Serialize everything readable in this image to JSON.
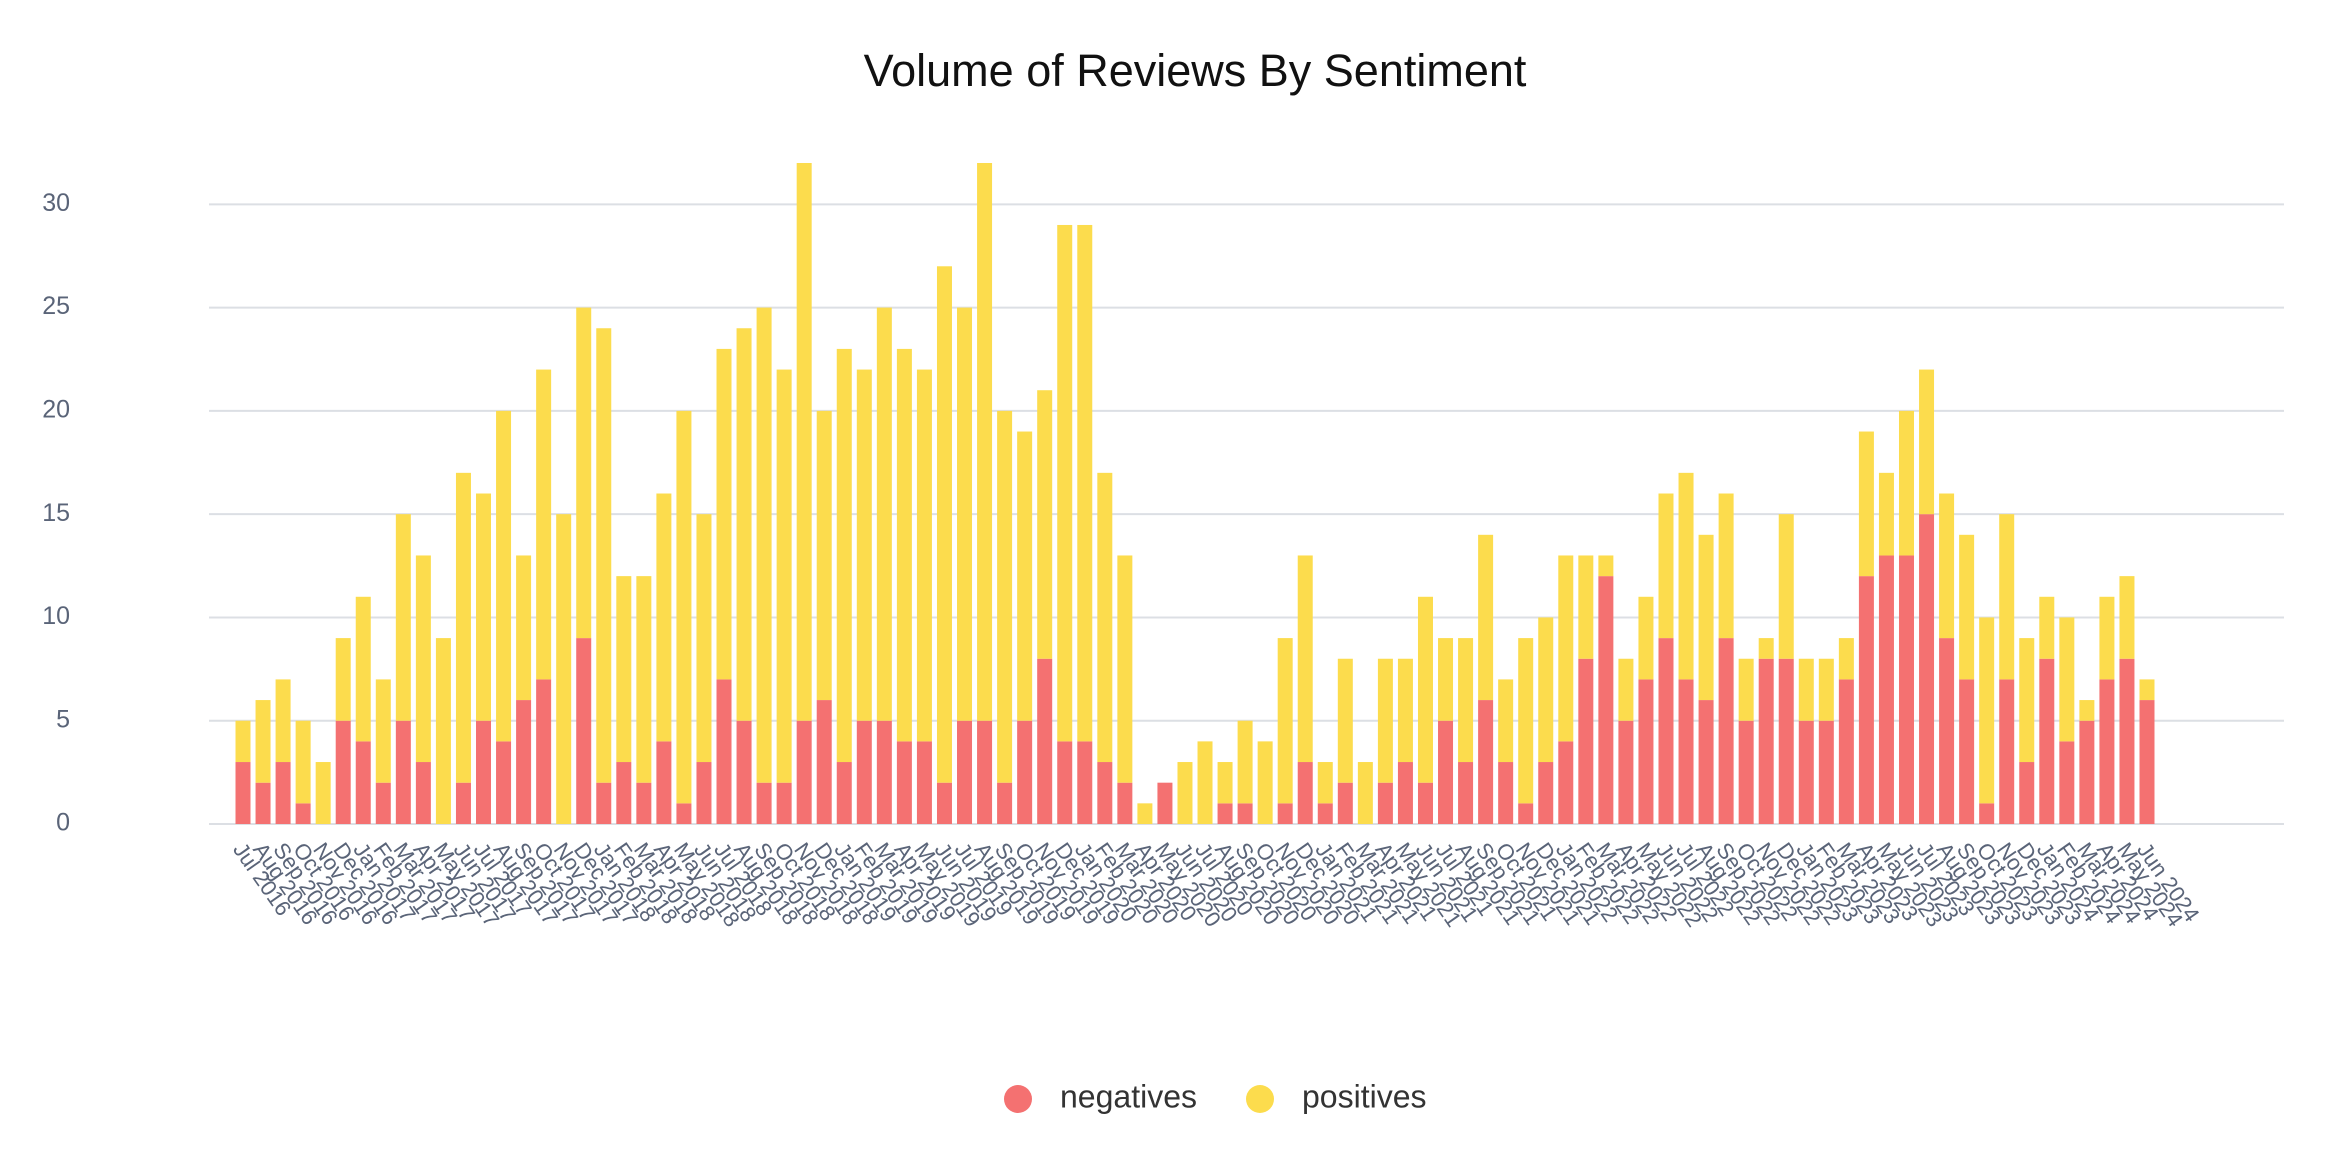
{
  "chart_data": {
    "type": "stacked_bar",
    "title": "Volume of Reviews By Sentiment",
    "categories": [
      "Jul 2016",
      "Aug 2016",
      "Sep 2016",
      "Oct 2016",
      "Nov 2016",
      "Dec 2016",
      "Jan 2017",
      "Feb 2017",
      "Mar 2017",
      "Apr 2017",
      "May 2017",
      "Jun 2017",
      "Jul 2017",
      "Aug 2017",
      "Sep 2017",
      "Oct 2017",
      "Nov 2017",
      "Dec 2017",
      "Jan 2018",
      "Feb 2018",
      "Mar 2018",
      "Apr 2018",
      "May 2018",
      "Jun 2018",
      "Jul 2018",
      "Aug 2018",
      "Sep 2018",
      "Oct 2018",
      "Nov 2018",
      "Dec 2018",
      "Jan 2019",
      "Feb 2019",
      "Mar 2019",
      "Apr 2019",
      "May 2019",
      "Jun 2019",
      "Jul 2019",
      "Aug 2019",
      "Sep 2019",
      "Oct 2019",
      "Nov 2019",
      "Dec 2019",
      "Jan 2020",
      "Feb 2020",
      "Mar 2020",
      "Apr 2020",
      "May 2020",
      "Jun 2020",
      "Jul 2020",
      "Aug 2020",
      "Sep 2020",
      "Oct 2020",
      "Nov 2020",
      "Dec 2020",
      "Jan 2021",
      "Feb 2021",
      "Mar 2021",
      "Apr 2021",
      "May 2021",
      "Jun 2021",
      "Jul 2021",
      "Aug 2021",
      "Sep 2021",
      "Oct 2021",
      "Nov 2021",
      "Dec 2021",
      "Jan 2022",
      "Feb 2022",
      "Mar 2022",
      "Apr 2022",
      "May 2022",
      "Jun 2022",
      "Jul 2022",
      "Aug 2022",
      "Sep 2022",
      "Oct 2022",
      "Nov 2022",
      "Dec 2022",
      "Jan 2023",
      "Feb 2023",
      "Mar 2023",
      "Apr 2023",
      "May 2023",
      "Jun 2023",
      "Jul 2023",
      "Aug 2023",
      "Sep 2023",
      "Oct 2023",
      "Nov 2023",
      "Dec 2023",
      "Jan 2024",
      "Feb 2024",
      "Mar 2024",
      "Apr 2024",
      "May 2024",
      "Jun 2024"
    ],
    "series": [
      {
        "name": "negatives",
        "color": "#f47171",
        "values": [
          3,
          2,
          3,
          1,
          0,
          5,
          4,
          2,
          5,
          3,
          0,
          2,
          5,
          4,
          6,
          7,
          0,
          9,
          2,
          3,
          2,
          4,
          1,
          3,
          7,
          5,
          2,
          2,
          5,
          6,
          3,
          5,
          5,
          4,
          4,
          2,
          5,
          5,
          2,
          5,
          8,
          4,
          4,
          3,
          2,
          0,
          2,
          0,
          0,
          1,
          1,
          0,
          1,
          3,
          1,
          2,
          0,
          2,
          3,
          2,
          5,
          3,
          6,
          3,
          1,
          3,
          4,
          8,
          12,
          5,
          7,
          9,
          7,
          6,
          9,
          5,
          8,
          8,
          5,
          5,
          7,
          12,
          13,
          13,
          15,
          9,
          7,
          1,
          7,
          3,
          8,
          4,
          5,
          7,
          8,
          6
        ]
      },
      {
        "name": "positives",
        "color": "#fcdc4d",
        "values": [
          2,
          4,
          4,
          4,
          3,
          4,
          7,
          5,
          10,
          10,
          9,
          15,
          11,
          16,
          7,
          15,
          15,
          16,
          22,
          9,
          10,
          12,
          19,
          12,
          16,
          19,
          23,
          20,
          27,
          14,
          20,
          17,
          20,
          19,
          18,
          25,
          20,
          27,
          18,
          14,
          13,
          25,
          25,
          14,
          11,
          1,
          0,
          3,
          4,
          2,
          4,
          4,
          8,
          10,
          2,
          6,
          3,
          6,
          5,
          9,
          4,
          6,
          8,
          4,
          8,
          7,
          9,
          5,
          1,
          3,
          4,
          7,
          10,
          8,
          7,
          3,
          1,
          7,
          3,
          3,
          2,
          7,
          4,
          7,
          7,
          7,
          7,
          9,
          8,
          6,
          3,
          6,
          1,
          4,
          4,
          1
        ]
      }
    ],
    "ylim": [
      0,
      32
    ],
    "yticks": [
      0,
      5,
      10,
      15,
      20,
      25,
      30
    ],
    "grid": true,
    "legend": "bottom"
  }
}
